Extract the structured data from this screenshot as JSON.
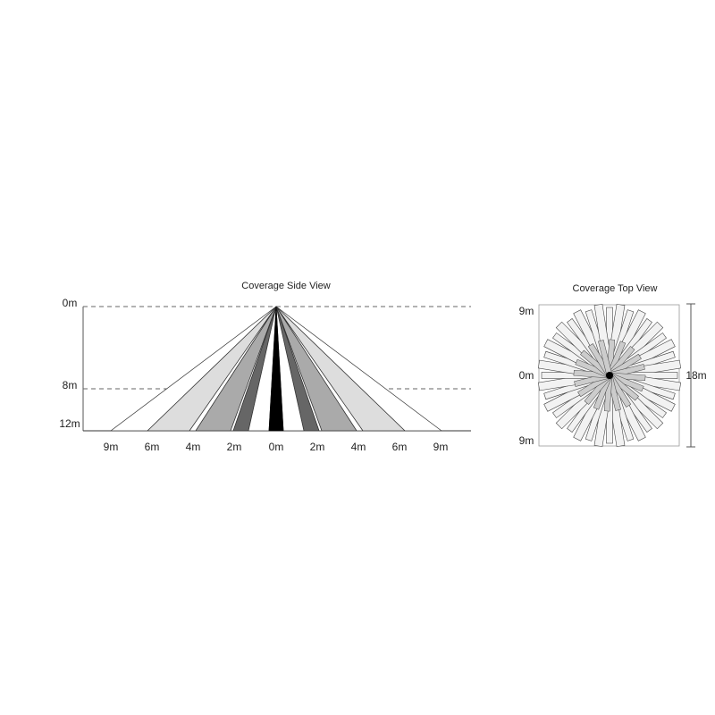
{
  "side_view": {
    "title": "Coverage Side View",
    "height_labels": [
      "0m",
      "8m",
      "12m"
    ],
    "distance_labels": [
      "9m",
      "6m",
      "4m",
      "2m",
      "0m",
      "2m",
      "4m",
      "6m",
      "9m"
    ]
  },
  "top_view": {
    "title": "Coverage Top View",
    "side_labels": [
      "9m",
      "0m",
      "9m"
    ],
    "span_label": "18m"
  }
}
